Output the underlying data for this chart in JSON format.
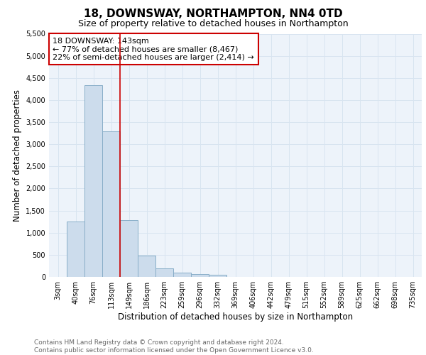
{
  "title1": "18, DOWNSWAY, NORTHAMPTON, NN4 0TD",
  "title2": "Size of property relative to detached houses in Northampton",
  "xlabel": "Distribution of detached houses by size in Northampton",
  "ylabel": "Number of detached properties",
  "bin_labels": [
    "3sqm",
    "40sqm",
    "76sqm",
    "113sqm",
    "149sqm",
    "186sqm",
    "223sqm",
    "259sqm",
    "296sqm",
    "332sqm",
    "369sqm",
    "406sqm",
    "442sqm",
    "479sqm",
    "515sqm",
    "552sqm",
    "589sqm",
    "625sqm",
    "662sqm",
    "698sqm",
    "735sqm"
  ],
  "bar_values": [
    0,
    1260,
    4330,
    3300,
    1280,
    480,
    195,
    90,
    70,
    45,
    0,
    0,
    0,
    0,
    0,
    0,
    0,
    0,
    0,
    0,
    0
  ],
  "bar_color": "#ccdcec",
  "bar_edge_color": "#88aec8",
  "bar_edge_width": 0.7,
  "grid_color": "#d8e4f0",
  "bg_color": "#edf3fa",
  "ylim": [
    0,
    5500
  ],
  "yticks": [
    0,
    500,
    1000,
    1500,
    2000,
    2500,
    3000,
    3500,
    4000,
    4500,
    5000,
    5500
  ],
  "vline_color": "#cc0000",
  "annotation_text": "18 DOWNSWAY: 143sqm\n← 77% of detached houses are smaller (8,467)\n22% of semi-detached houses are larger (2,414) →",
  "annotation_box_color": "#ffffff",
  "annotation_box_edge": "#cc0000",
  "footnote": "Contains HM Land Registry data © Crown copyright and database right 2024.\nContains public sector information licensed under the Open Government Licence v3.0.",
  "title1_fontsize": 11,
  "title2_fontsize": 9,
  "xlabel_fontsize": 8.5,
  "ylabel_fontsize": 8.5,
  "tick_fontsize": 7,
  "annotation_fontsize": 8,
  "footnote_fontsize": 6.5
}
